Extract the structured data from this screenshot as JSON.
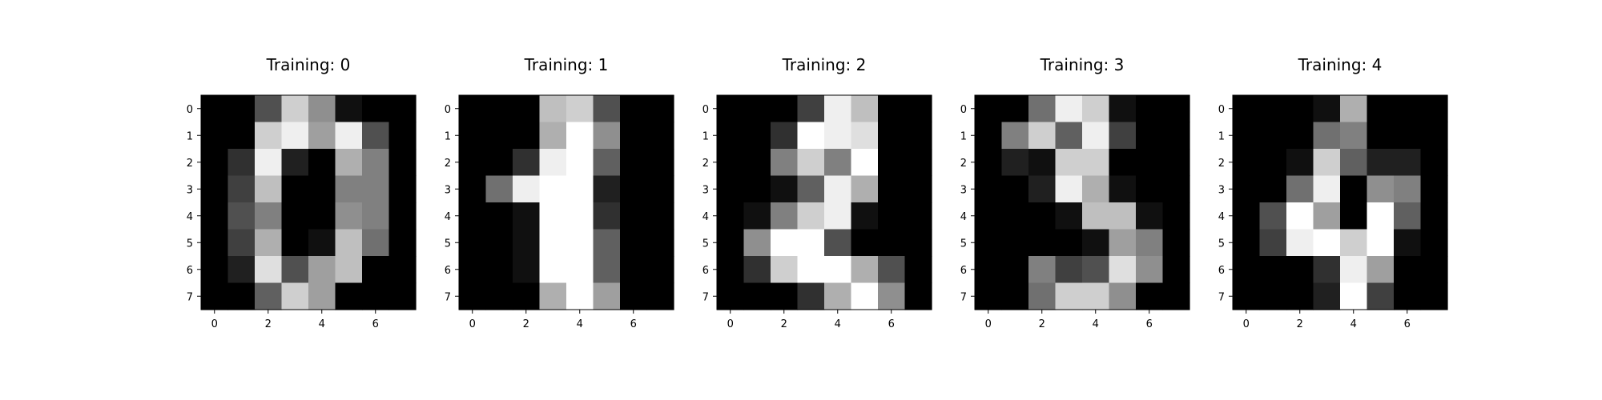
{
  "chart_data": [
    {
      "type": "heatmap",
      "title": "Training: 0",
      "colormap": "gray",
      "value_range": [
        0,
        16
      ],
      "x_ticks": [
        "0",
        "2",
        "4",
        "6"
      ],
      "y_ticks": [
        "0",
        "1",
        "2",
        "3",
        "4",
        "5",
        "6",
        "7"
      ],
      "grid": false,
      "values": [
        [
          0,
          0,
          5,
          13,
          9,
          1,
          0,
          0
        ],
        [
          0,
          0,
          13,
          15,
          10,
          15,
          5,
          0
        ],
        [
          0,
          3,
          15,
          2,
          0,
          11,
          8,
          0
        ],
        [
          0,
          4,
          12,
          0,
          0,
          8,
          8,
          0
        ],
        [
          0,
          5,
          8,
          0,
          0,
          9,
          8,
          0
        ],
        [
          0,
          4,
          11,
          0,
          1,
          12,
          7,
          0
        ],
        [
          0,
          2,
          14,
          5,
          10,
          12,
          0,
          0
        ],
        [
          0,
          0,
          6,
          13,
          10,
          0,
          0,
          0
        ]
      ]
    },
    {
      "type": "heatmap",
      "title": "Training: 1",
      "colormap": "gray",
      "value_range": [
        0,
        16
      ],
      "x_ticks": [
        "0",
        "2",
        "4",
        "6"
      ],
      "y_ticks": [
        "0",
        "1",
        "2",
        "3",
        "4",
        "5",
        "6",
        "7"
      ],
      "grid": false,
      "values": [
        [
          0,
          0,
          0,
          12,
          13,
          5,
          0,
          0
        ],
        [
          0,
          0,
          0,
          11,
          16,
          9,
          0,
          0
        ],
        [
          0,
          0,
          3,
          15,
          16,
          6,
          0,
          0
        ],
        [
          0,
          7,
          15,
          16,
          16,
          2,
          0,
          0
        ],
        [
          0,
          0,
          1,
          16,
          16,
          3,
          0,
          0
        ],
        [
          0,
          0,
          1,
          16,
          16,
          6,
          0,
          0
        ],
        [
          0,
          0,
          1,
          16,
          16,
          6,
          0,
          0
        ],
        [
          0,
          0,
          0,
          11,
          16,
          10,
          0,
          0
        ]
      ]
    },
    {
      "type": "heatmap",
      "title": "Training: 2",
      "colormap": "gray",
      "value_range": [
        0,
        16
      ],
      "x_ticks": [
        "0",
        "2",
        "4",
        "6"
      ],
      "y_ticks": [
        "0",
        "1",
        "2",
        "3",
        "4",
        "5",
        "6",
        "7"
      ],
      "grid": false,
      "values": [
        [
          0,
          0,
          0,
          4,
          15,
          12,
          0,
          0
        ],
        [
          0,
          0,
          3,
          16,
          15,
          14,
          0,
          0
        ],
        [
          0,
          0,
          8,
          13,
          8,
          16,
          0,
          0
        ],
        [
          0,
          0,
          1,
          6,
          15,
          11,
          0,
          0
        ],
        [
          0,
          1,
          8,
          13,
          15,
          1,
          0,
          0
        ],
        [
          0,
          9,
          16,
          16,
          5,
          0,
          0,
          0
        ],
        [
          0,
          3,
          13,
          16,
          16,
          11,
          5,
          0
        ],
        [
          0,
          0,
          0,
          3,
          11,
          16,
          9,
          0
        ]
      ]
    },
    {
      "type": "heatmap",
      "title": "Training: 3",
      "colormap": "gray",
      "value_range": [
        0,
        16
      ],
      "x_ticks": [
        "0",
        "2",
        "4",
        "6"
      ],
      "y_ticks": [
        "0",
        "1",
        "2",
        "3",
        "4",
        "5",
        "6",
        "7"
      ],
      "grid": false,
      "values": [
        [
          0,
          0,
          7,
          15,
          13,
          1,
          0,
          0
        ],
        [
          0,
          8,
          13,
          6,
          15,
          4,
          0,
          0
        ],
        [
          0,
          2,
          1,
          13,
          13,
          0,
          0,
          0
        ],
        [
          0,
          0,
          2,
          15,
          11,
          1,
          0,
          0
        ],
        [
          0,
          0,
          0,
          1,
          12,
          12,
          1,
          0
        ],
        [
          0,
          0,
          0,
          0,
          1,
          10,
          8,
          0
        ],
        [
          0,
          0,
          8,
          4,
          5,
          14,
          9,
          0
        ],
        [
          0,
          0,
          7,
          13,
          13,
          9,
          0,
          0
        ]
      ]
    },
    {
      "type": "heatmap",
      "title": "Training: 4",
      "colormap": "gray",
      "value_range": [
        0,
        16
      ],
      "x_ticks": [
        "0",
        "2",
        "4",
        "6"
      ],
      "y_ticks": [
        "0",
        "1",
        "2",
        "3",
        "4",
        "5",
        "6",
        "7"
      ],
      "grid": false,
      "values": [
        [
          0,
          0,
          0,
          1,
          11,
          0,
          0,
          0
        ],
        [
          0,
          0,
          0,
          7,
          8,
          0,
          0,
          0
        ],
        [
          0,
          0,
          1,
          13,
          6,
          2,
          2,
          0
        ],
        [
          0,
          0,
          7,
          15,
          0,
          9,
          8,
          0
        ],
        [
          0,
          5,
          16,
          10,
          0,
          16,
          6,
          0
        ],
        [
          0,
          4,
          15,
          16,
          13,
          16,
          1,
          0
        ],
        [
          0,
          0,
          0,
          3,
          15,
          10,
          0,
          0
        ],
        [
          0,
          0,
          0,
          2,
          16,
          4,
          0,
          0
        ]
      ]
    }
  ]
}
